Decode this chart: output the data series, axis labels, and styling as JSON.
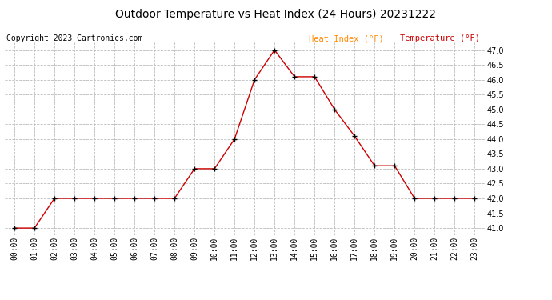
{
  "title": "Outdoor Temperature vs Heat Index (24 Hours) 20231222",
  "copyright": "Copyright 2023 Cartronics.com",
  "legend_heat_index": "Heat Index (°F)",
  "legend_temperature": "Temperature (°F)",
  "hours": [
    "00:00",
    "01:00",
    "02:00",
    "03:00",
    "04:00",
    "05:00",
    "06:00",
    "07:00",
    "08:00",
    "09:00",
    "10:00",
    "11:00",
    "12:00",
    "13:00",
    "14:00",
    "15:00",
    "16:00",
    "17:00",
    "18:00",
    "19:00",
    "20:00",
    "21:00",
    "22:00",
    "23:00"
  ],
  "temperature": [
    41.0,
    41.0,
    42.0,
    42.0,
    42.0,
    42.0,
    42.0,
    42.0,
    42.0,
    43.0,
    43.0,
    44.0,
    46.0,
    47.0,
    46.1,
    46.1,
    45.0,
    44.1,
    43.1,
    43.1,
    42.0,
    42.0,
    42.0,
    42.0
  ],
  "heat_index": [
    41.0,
    41.0,
    42.0,
    42.0,
    42.0,
    42.0,
    42.0,
    42.0,
    42.0,
    43.0,
    43.0,
    44.0,
    46.0,
    47.0,
    46.1,
    46.1,
    45.0,
    44.1,
    43.1,
    43.1,
    42.0,
    42.0,
    42.0,
    42.0
  ],
  "ylim_min": 40.75,
  "ylim_max": 47.25,
  "ytick_min": 41.0,
  "ytick_max": 47.0,
  "ytick_step": 0.5,
  "line_color": "#cc0000",
  "marker_color": "#000000",
  "grid_color": "#bbbbbb",
  "bg_color": "#ffffff",
  "title_color": "#000000",
  "copyright_color": "#000000",
  "legend_heat_index_color": "#ff8800",
  "legend_temperature_color": "#cc0000",
  "title_fontsize": 10,
  "copyright_fontsize": 7,
  "legend_fontsize": 7.5,
  "tick_fontsize": 7,
  "ytick_fontsize": 7
}
